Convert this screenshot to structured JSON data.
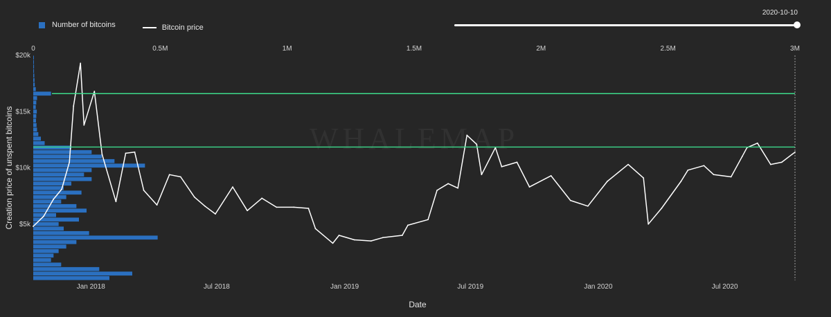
{
  "legend": {
    "bars_label": "Number of bitcoins",
    "line_label": "Bitcoin price"
  },
  "slider": {
    "date": "2020-10-10",
    "position": 1.0
  },
  "watermark": "WHALEMAP",
  "colors": {
    "background": "#262626",
    "bars": "#2b70c0",
    "price_line": "#ffffff",
    "levels": "#3ddc8c"
  },
  "chart_data": {
    "type": "line",
    "xlabel": "Date",
    "ylabel": "Creation price of unspent bitcoins",
    "x_ticks": [
      "Jan 2018",
      "Jul 2018",
      "Jan 2019",
      "Jul 2019",
      "Jan 2020",
      "Jul 2020"
    ],
    "x_range": [
      "2017-10-10",
      "2020-10-10"
    ],
    "ylim": [
      0,
      20000
    ],
    "y_ticks": [
      {
        "value": 5000,
        "label": "$5k"
      },
      {
        "value": 10000,
        "label": "$10k"
      },
      {
        "value": 15000,
        "label": "$15k"
      },
      {
        "value": 20000,
        "label": "$20k"
      }
    ],
    "top_axis": {
      "label_ticks": [
        "0",
        "0.5M",
        "1M",
        "1.5M",
        "2M",
        "2.5M",
        "3M"
      ],
      "range": [
        0,
        3000000
      ]
    },
    "levels": [
      16600,
      11850
    ],
    "series": [
      {
        "name": "Bitcoin price",
        "points": [
          [
            "2017-10-10",
            4800
          ],
          [
            "2017-10-25",
            5700
          ],
          [
            "2017-11-08",
            7200
          ],
          [
            "2017-11-20",
            8100
          ],
          [
            "2017-12-01",
            10500
          ],
          [
            "2017-12-07",
            15500
          ],
          [
            "2017-12-17",
            19300
          ],
          [
            "2017-12-22",
            13800
          ],
          [
            "2018-01-06",
            16800
          ],
          [
            "2018-01-17",
            11200
          ],
          [
            "2018-02-06",
            7000
          ],
          [
            "2018-02-20",
            11300
          ],
          [
            "2018-03-05",
            11400
          ],
          [
            "2018-03-18",
            8000
          ],
          [
            "2018-04-06",
            6700
          ],
          [
            "2018-04-24",
            9400
          ],
          [
            "2018-05-10",
            9200
          ],
          [
            "2018-05-30",
            7400
          ],
          [
            "2018-06-14",
            6600
          ],
          [
            "2018-06-29",
            5900
          ],
          [
            "2018-07-24",
            8300
          ],
          [
            "2018-08-14",
            6200
          ],
          [
            "2018-09-04",
            7300
          ],
          [
            "2018-09-25",
            6500
          ],
          [
            "2018-10-20",
            6500
          ],
          [
            "2018-11-10",
            6400
          ],
          [
            "2018-11-20",
            4600
          ],
          [
            "2018-12-15",
            3300
          ],
          [
            "2018-12-24",
            4000
          ],
          [
            "2019-01-15",
            3600
          ],
          [
            "2019-02-08",
            3500
          ],
          [
            "2019-02-25",
            3800
          ],
          [
            "2019-03-25",
            4000
          ],
          [
            "2019-04-02",
            4900
          ],
          [
            "2019-05-01",
            5400
          ],
          [
            "2019-05-14",
            8000
          ],
          [
            "2019-05-30",
            8600
          ],
          [
            "2019-06-13",
            8200
          ],
          [
            "2019-06-26",
            12900
          ],
          [
            "2019-07-10",
            12100
          ],
          [
            "2019-07-17",
            9400
          ],
          [
            "2019-08-06",
            11800
          ],
          [
            "2019-08-15",
            10100
          ],
          [
            "2019-09-06",
            10500
          ],
          [
            "2019-09-24",
            8300
          ],
          [
            "2019-10-25",
            9300
          ],
          [
            "2019-11-22",
            7100
          ],
          [
            "2019-12-17",
            6600
          ],
          [
            "2020-01-14",
            8800
          ],
          [
            "2020-02-13",
            10300
          ],
          [
            "2020-03-06",
            9100
          ],
          [
            "2020-03-13",
            5000
          ],
          [
            "2020-04-01",
            6400
          ],
          [
            "2020-04-29",
            8800
          ],
          [
            "2020-05-09",
            9800
          ],
          [
            "2020-06-01",
            10200
          ],
          [
            "2020-06-15",
            9400
          ],
          [
            "2020-07-10",
            9200
          ],
          [
            "2020-07-26",
            11000
          ],
          [
            "2020-08-02",
            11800
          ],
          [
            "2020-08-17",
            12200
          ],
          [
            "2020-09-05",
            10300
          ],
          [
            "2020-09-21",
            10500
          ],
          [
            "2020-10-10",
            11400
          ]
        ]
      },
      {
        "name": "Number of bitcoins",
        "type": "horizontal-bar",
        "bins": [
          [
            19800,
            2000
          ],
          [
            19400,
            2000
          ],
          [
            19000,
            3000
          ],
          [
            18600,
            3000
          ],
          [
            18200,
            4000
          ],
          [
            17800,
            5000
          ],
          [
            17400,
            6000
          ],
          [
            17000,
            10000
          ],
          [
            16600,
            70000
          ],
          [
            16200,
            15000
          ],
          [
            15800,
            12000
          ],
          [
            15400,
            10000
          ],
          [
            15000,
            14000
          ],
          [
            14600,
            12000
          ],
          [
            14200,
            11000
          ],
          [
            13800,
            13000
          ],
          [
            13400,
            15000
          ],
          [
            13000,
            20000
          ],
          [
            12600,
            30000
          ],
          [
            12200,
            45000
          ],
          [
            11800,
            150000
          ],
          [
            11400,
            230000
          ],
          [
            11000,
            270000
          ],
          [
            10600,
            320000
          ],
          [
            10200,
            440000
          ],
          [
            9800,
            230000
          ],
          [
            9400,
            200000
          ],
          [
            9000,
            230000
          ],
          [
            8600,
            150000
          ],
          [
            8200,
            120000
          ],
          [
            7800,
            190000
          ],
          [
            7400,
            130000
          ],
          [
            7000,
            110000
          ],
          [
            6600,
            170000
          ],
          [
            6200,
            210000
          ],
          [
            5800,
            90000
          ],
          [
            5400,
            180000
          ],
          [
            5000,
            100000
          ],
          [
            4600,
            120000
          ],
          [
            4200,
            220000
          ],
          [
            3800,
            490000
          ],
          [
            3400,
            170000
          ],
          [
            3000,
            130000
          ],
          [
            2600,
            100000
          ],
          [
            2200,
            80000
          ],
          [
            1800,
            70000
          ],
          [
            1400,
            110000
          ],
          [
            1000,
            260000
          ],
          [
            600,
            390000
          ],
          [
            200,
            300000
          ]
        ]
      }
    ]
  }
}
